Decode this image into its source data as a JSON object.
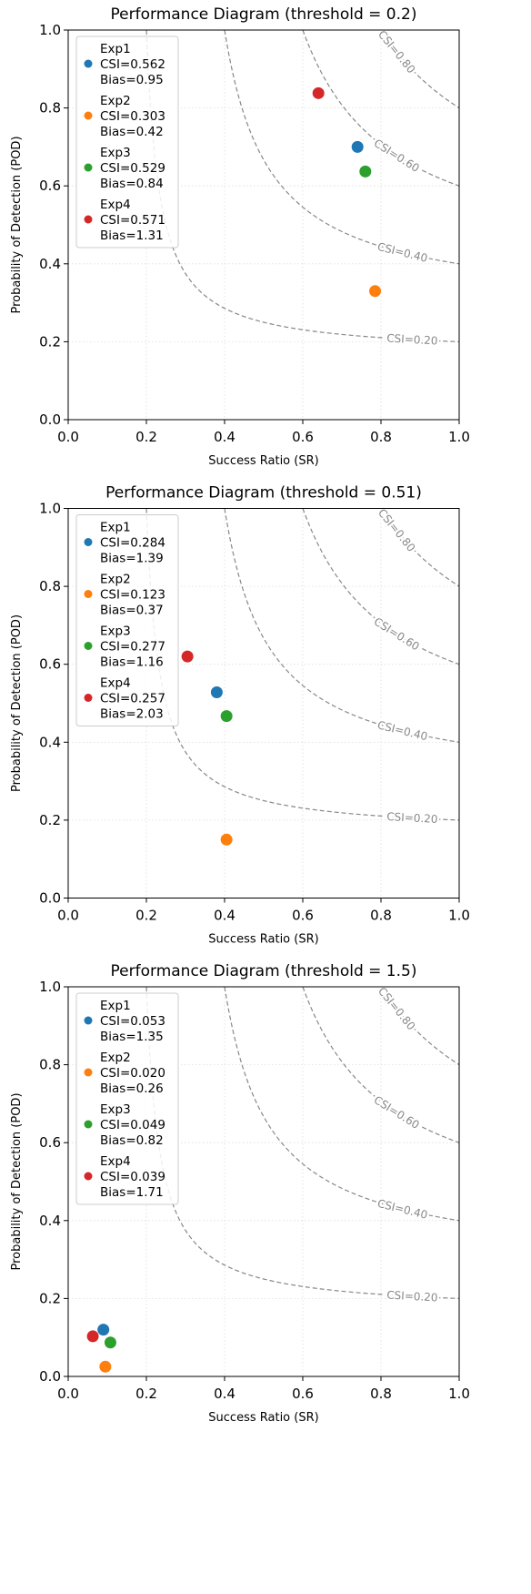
{
  "chart_data": [
    {
      "type": "scatter",
      "title": "Performance Diagram (threshold = 0.2)",
      "x_label": "Success Ratio (SR)",
      "y_label": "Probability of Detection (POD)",
      "xlim": [
        0,
        1
      ],
      "ylim": [
        0,
        1
      ],
      "xticks": [
        {
          "value": 0,
          "label": "0.0"
        },
        0.2,
        0.4,
        0.6,
        0.8,
        {
          "value": 1,
          "label": "1.0"
        }
      ],
      "yticks": [
        {
          "value": 0,
          "label": "0.0"
        },
        0.2,
        0.4,
        0.6,
        0.8,
        {
          "value": 1,
          "label": "1.0"
        }
      ],
      "grid": true,
      "legend": "upper left",
      "csi_contours": [
        {
          "value": 0.2,
          "label": "CSI=0.20"
        },
        {
          "value": 0.4,
          "label": "CSI=0.40"
        },
        {
          "value": 0.6,
          "label": "CSI=0.60"
        },
        {
          "value": 0.8,
          "label": "CSI=0.80"
        }
      ],
      "series": [
        {
          "name": "Exp1",
          "csi_label": "CSI=0.562",
          "bias_label": "Bias=0.95",
          "color": "#1f77b4",
          "x": [
            0.74
          ],
          "values": [
            0.7
          ]
        },
        {
          "name": "Exp2",
          "csi_label": "CSI=0.303",
          "bias_label": "Bias=0.42",
          "color": "#ff7f0e",
          "x": [
            0.785
          ],
          "values": [
            0.33
          ]
        },
        {
          "name": "Exp3",
          "csi_label": "CSI=0.529",
          "bias_label": "Bias=0.84",
          "color": "#2ca02c",
          "x": [
            0.76
          ],
          "values": [
            0.637
          ]
        },
        {
          "name": "Exp4",
          "csi_label": "CSI=0.571",
          "bias_label": "Bias=1.31",
          "color": "#d62728",
          "x": [
            0.64
          ],
          "values": [
            0.838
          ]
        }
      ]
    },
    {
      "type": "scatter",
      "title": "Performance Diagram (threshold = 0.51)",
      "x_label": "Success Ratio (SR)",
      "y_label": "Probability of Detection (POD)",
      "xlim": [
        0,
        1
      ],
      "ylim": [
        0,
        1
      ],
      "xticks": [
        {
          "value": 0,
          "label": "0.0"
        },
        0.2,
        0.4,
        0.6,
        0.8,
        {
          "value": 1,
          "label": "1.0"
        }
      ],
      "yticks": [
        {
          "value": 0,
          "label": "0.0"
        },
        0.2,
        0.4,
        0.6,
        0.8,
        {
          "value": 1,
          "label": "1.0"
        }
      ],
      "grid": true,
      "legend": "upper left",
      "csi_contours": [
        {
          "value": 0.2,
          "label": "CSI=0.20"
        },
        {
          "value": 0.4,
          "label": "CSI=0.40"
        },
        {
          "value": 0.6,
          "label": "CSI=0.60"
        },
        {
          "value": 0.8,
          "label": "CSI=0.80"
        }
      ],
      "series": [
        {
          "name": "Exp1",
          "csi_label": "CSI=0.284",
          "bias_label": "Bias=1.39",
          "color": "#1f77b4",
          "x": [
            0.38
          ],
          "values": [
            0.528
          ]
        },
        {
          "name": "Exp2",
          "csi_label": "CSI=0.123",
          "bias_label": "Bias=0.37",
          "color": "#ff7f0e",
          "x": [
            0.405
          ],
          "values": [
            0.15
          ]
        },
        {
          "name": "Exp3",
          "csi_label": "CSI=0.277",
          "bias_label": "Bias=1.16",
          "color": "#2ca02c",
          "x": [
            0.405
          ],
          "values": [
            0.467
          ]
        },
        {
          "name": "Exp4",
          "csi_label": "CSI=0.257",
          "bias_label": "Bias=2.03",
          "color": "#d62728",
          "x": [
            0.305
          ],
          "values": [
            0.62
          ]
        }
      ]
    },
    {
      "type": "scatter",
      "title": "Performance Diagram (threshold = 1.5)",
      "x_label": "Success Ratio (SR)",
      "y_label": "Probability of Detection (POD)",
      "xlim": [
        0,
        1
      ],
      "ylim": [
        0,
        1
      ],
      "xticks": [
        {
          "value": 0,
          "label": "0.0"
        },
        0.2,
        0.4,
        0.6,
        0.8,
        {
          "value": 1,
          "label": "1.0"
        }
      ],
      "yticks": [
        {
          "value": 0,
          "label": "0.0"
        },
        0.2,
        0.4,
        0.6,
        0.8,
        {
          "value": 1,
          "label": "1.0"
        }
      ],
      "grid": true,
      "legend": "upper left",
      "csi_contours": [
        {
          "value": 0.2,
          "label": "CSI=0.20"
        },
        {
          "value": 0.4,
          "label": "CSI=0.40"
        },
        {
          "value": 0.6,
          "label": "CSI=0.60"
        },
        {
          "value": 0.8,
          "label": "CSI=0.80"
        }
      ],
      "series": [
        {
          "name": "Exp1",
          "csi_label": "CSI=0.053",
          "bias_label": "Bias=1.35",
          "color": "#1f77b4",
          "x": [
            0.09
          ],
          "values": [
            0.12
          ]
        },
        {
          "name": "Exp2",
          "csi_label": "CSI=0.020",
          "bias_label": "Bias=0.26",
          "color": "#ff7f0e",
          "x": [
            0.095
          ],
          "values": [
            0.025
          ]
        },
        {
          "name": "Exp3",
          "csi_label": "CSI=0.049",
          "bias_label": "Bias=0.82",
          "color": "#2ca02c",
          "x": [
            0.108
          ],
          "values": [
            0.087
          ]
        },
        {
          "name": "Exp4",
          "csi_label": "CSI=0.039",
          "bias_label": "Bias=1.71",
          "color": "#d62728",
          "x": [
            0.063
          ],
          "values": [
            0.103
          ]
        }
      ]
    }
  ]
}
